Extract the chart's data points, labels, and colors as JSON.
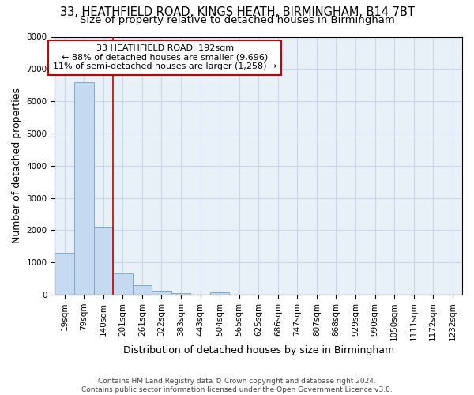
{
  "title": "33, HEATHFIELD ROAD, KINGS HEATH, BIRMINGHAM, B14 7BT",
  "subtitle": "Size of property relative to detached houses in Birmingham",
  "xlabel": "Distribution of detached houses by size in Birmingham",
  "ylabel": "Number of detached properties",
  "footer_line1": "Contains HM Land Registry data © Crown copyright and database right 2024.",
  "footer_line2": "Contains public sector information licensed under the Open Government Licence v3.0.",
  "bin_labels": [
    "19sqm",
    "79sqm",
    "140sqm",
    "201sqm",
    "261sqm",
    "322sqm",
    "383sqm",
    "443sqm",
    "504sqm",
    "565sqm",
    "625sqm",
    "686sqm",
    "747sqm",
    "807sqm",
    "868sqm",
    "929sqm",
    "990sqm",
    "1050sqm",
    "1111sqm",
    "1172sqm",
    "1232sqm"
  ],
  "bar_heights": [
    1300,
    6600,
    2100,
    650,
    300,
    130,
    60,
    0,
    80,
    0,
    0,
    0,
    0,
    0,
    0,
    0,
    0,
    0,
    0,
    0,
    0
  ],
  "bar_color": "#c5d9f0",
  "bar_edge_color": "#7aadd4",
  "vline_color": "#cc0000",
  "annotation_text": "33 HEATHFIELD ROAD: 192sqm\n← 88% of detached houses are smaller (9,696)\n11% of semi-detached houses are larger (1,258) →",
  "annotation_box_edge_color": "#cc0000",
  "ylim": [
    0,
    8000
  ],
  "yticks": [
    0,
    1000,
    2000,
    3000,
    4000,
    5000,
    6000,
    7000,
    8000
  ],
  "grid_color": "#c8d8ea",
  "bg_color": "#e8f0f8",
  "title_fontsize": 10.5,
  "subtitle_fontsize": 9.5,
  "axis_label_fontsize": 9,
  "tick_fontsize": 7.5,
  "footer_fontsize": 6.5
}
